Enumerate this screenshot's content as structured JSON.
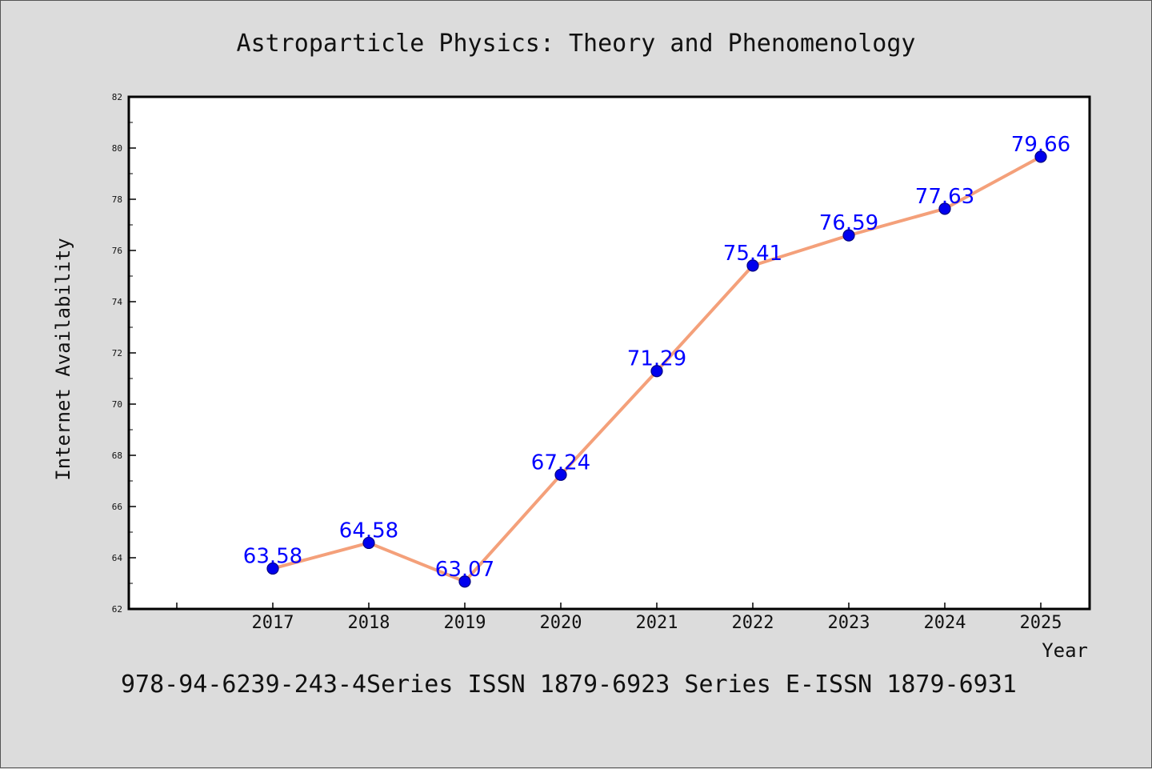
{
  "chart_data": {
    "type": "line",
    "title": "Astroparticle Physics: Theory and Phenomenology",
    "xlabel": "Year",
    "ylabel": "Internet Availability",
    "footer": "978-94-6239-243-4Series ISSN 1879-6923 Series E-ISSN 1879-6931",
    "categories": [
      "2017",
      "2018",
      "2019",
      "2020",
      "2021",
      "2022",
      "2023",
      "2024",
      "2025"
    ],
    "series": [
      {
        "values": [
          63.58,
          64.58,
          63.07,
          67.24,
          71.29,
          75.41,
          76.59,
          77.63,
          79.66
        ],
        "labels": [
          "63.58",
          "64.58",
          "63.07",
          "67.24",
          "71.29",
          "75.41",
          "76.59",
          "77.63",
          "79.66"
        ]
      }
    ],
    "ylim": [
      62,
      82
    ],
    "yticks": [
      "62",
      "64",
      "66",
      "68",
      "70",
      "72",
      "74",
      "76",
      "78",
      "80",
      "82"
    ],
    "grid": false,
    "legend": "none",
    "colors": {
      "line": "#f4a07a",
      "marker": "#0000ee",
      "marker_edge": "#000080",
      "data_label": "#0000ff",
      "text": "#111111",
      "background": "#dcdcdc",
      "plot_background": "#ffffff"
    }
  }
}
